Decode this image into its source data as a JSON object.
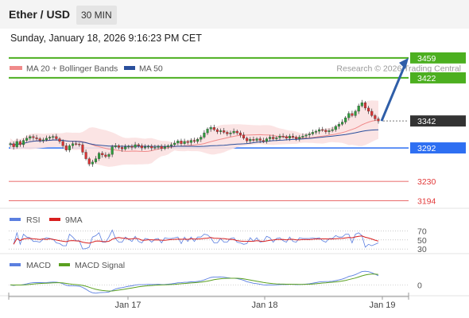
{
  "header": {
    "title": "Ether / USD",
    "timeframe": "30 MIN",
    "datetime": "Sunday, January 18, 2026 9:16:23 PM CET"
  },
  "colors": {
    "resistance": "#4caf20",
    "current": "#333333",
    "support_blue": "#2e6ff2",
    "support_red": "#e23a3a",
    "candle_up": "#2e9b3c",
    "candle_down": "#d63232",
    "ma20": "#f08a8a",
    "ma50": "#2a4f9c",
    "bollinger": "#fbe1e1",
    "arrow": "#2f5ea8",
    "rsi": "#5b7fe0",
    "rsi_ma": "#d81f1f",
    "macd": "#5b7fe0",
    "macd_signal": "#5aa020"
  },
  "chart_data": [
    {
      "type": "candlestick",
      "legend": [
        {
          "name": "MA 20 + Bollinger Bands",
          "color": "#f08a8a"
        },
        {
          "name": "MA 50",
          "color": "#2a4f9c"
        }
      ],
      "watermark": "Research © 2026 Trading Central",
      "ylim": [
        3180,
        3475
      ],
      "levels": [
        {
          "value": 3459,
          "label": "3459",
          "kind": "resistance"
        },
        {
          "value": 3422,
          "label": "3422",
          "kind": "resistance"
        },
        {
          "value": 3342,
          "label": "3342",
          "kind": "current"
        },
        {
          "value": 3292,
          "label": "3292",
          "kind": "support_blue"
        },
        {
          "value": 3230,
          "label": "3230",
          "kind": "support_red"
        },
        {
          "value": 3194,
          "label": "3194",
          "kind": "support_red"
        }
      ],
      "x_ticks": [
        "Jan 17",
        "Jan 18",
        "Jan 19"
      ],
      "closes": [
        3300,
        3294,
        3304,
        3298,
        3306,
        3310,
        3313,
        3311,
        3309,
        3306,
        3307,
        3310,
        3312,
        3313,
        3309,
        3304,
        3296,
        3288,
        3296,
        3300,
        3299,
        3298,
        3284,
        3272,
        3262,
        3266,
        3272,
        3282,
        3279,
        3276,
        3280,
        3294,
        3296,
        3293,
        3290,
        3294,
        3295,
        3293,
        3298,
        3296,
        3292,
        3294,
        3295,
        3292,
        3293,
        3295,
        3291,
        3294,
        3296,
        3298,
        3301,
        3305,
        3300,
        3304,
        3302,
        3306,
        3304,
        3308,
        3312,
        3320,
        3327,
        3330,
        3326,
        3322,
        3324,
        3321,
        3318,
        3320,
        3323,
        3320,
        3316,
        3310,
        3305,
        3308,
        3306,
        3309,
        3306,
        3304,
        3309,
        3312,
        3309,
        3311,
        3314,
        3313,
        3310,
        3314,
        3312,
        3309,
        3312,
        3314,
        3316,
        3318,
        3321,
        3323,
        3326,
        3325,
        3322,
        3324,
        3326,
        3332,
        3336,
        3340,
        3348,
        3356,
        3352,
        3360,
        3370,
        3376,
        3366,
        3360,
        3352,
        3346,
        3342
      ],
      "arrow": {
        "from": 3342,
        "to": 3459
      }
    },
    {
      "type": "line",
      "legend": [
        {
          "name": "RSI",
          "color": "#5b7fe0"
        },
        {
          "name": "9MA",
          "color": "#d81f1f"
        }
      ],
      "ylim": [
        25,
        78
      ],
      "y_ticks": [
        70,
        50,
        30
      ]
    },
    {
      "type": "line",
      "legend": [
        {
          "name": "MACD",
          "color": "#5b7fe0"
        },
        {
          "name": "MACD Signal",
          "color": "#5aa020"
        }
      ],
      "y_ticks": [
        0
      ]
    }
  ]
}
